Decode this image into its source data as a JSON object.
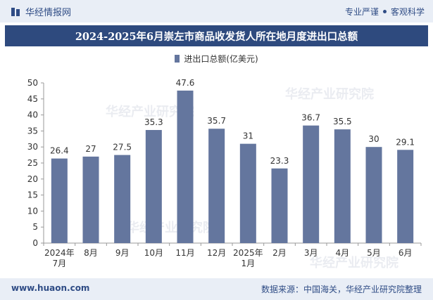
{
  "header": {
    "brand_name": "华经情报网",
    "tag_left": "专业严谨",
    "tag_right": "客观科学"
  },
  "title": "2024-2025年6月崇左市商品收发货人所在地月度进出口总额",
  "footer": {
    "url": "www.huaon.com",
    "source": "数据来源：中国海关，华经产业研究院整理"
  },
  "watermark": {
    "text": "华经产业研究院",
    "url": "www.huaon.com"
  },
  "colors": {
    "bar": "#64769e",
    "title_bg": "#2e4a7e",
    "band_bg": "#e9eef6"
  },
  "chart_data": {
    "type": "bar",
    "title": "2024-2025年6月崇左市商品收发货人所在地月度进出口总额",
    "categories": [
      "2024年7月",
      "8月",
      "9月",
      "10月",
      "11月",
      "12月",
      "2025年1月",
      "2月",
      "3月",
      "4月",
      "5月",
      "6月"
    ],
    "series": [
      {
        "name": "进出口总额(亿美元)",
        "values": [
          26.4,
          27,
          27.5,
          35.3,
          47.6,
          35.7,
          31,
          23.3,
          36.7,
          35.5,
          30,
          29.1
        ]
      }
    ],
    "ylim": [
      0,
      50
    ],
    "yticks": [
      0,
      5,
      10,
      15,
      20,
      25,
      30,
      35,
      40,
      45,
      50
    ],
    "grid": false,
    "legend_position": "top-center"
  }
}
